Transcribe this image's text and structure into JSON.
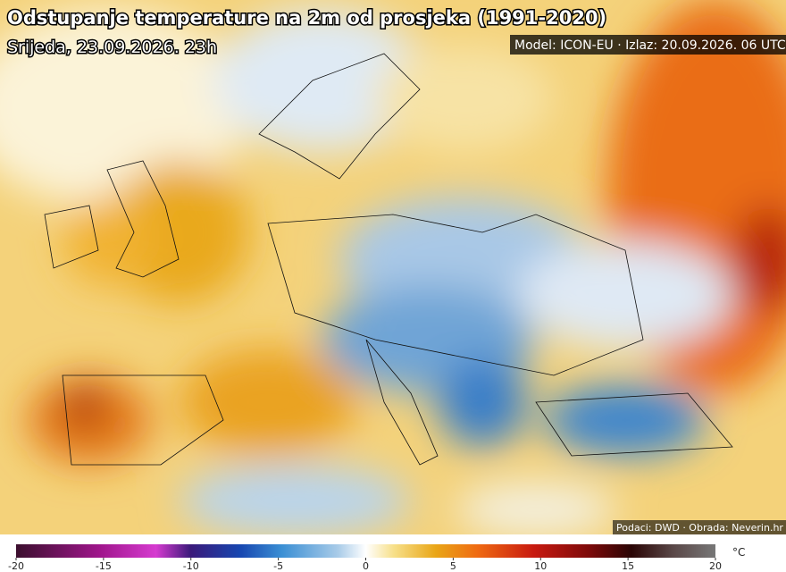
{
  "header": {
    "title": "Odstupanje temperature na 2m od prosjeka (1991-2020)",
    "subtitle": "Srijeda, 23.09.2026. 23h",
    "model_info": "Model: ICON-EU · Izlaz: 20.09.2026. 06 UTC"
  },
  "credits": "Podaci: DWD · Obrada: Neverin.hr",
  "colorbar": {
    "lim": [
      -20,
      20
    ],
    "ticks": [
      -20,
      -15,
      -10,
      -5,
      0,
      5,
      10,
      15,
      20
    ],
    "unit": "°C"
  }
}
